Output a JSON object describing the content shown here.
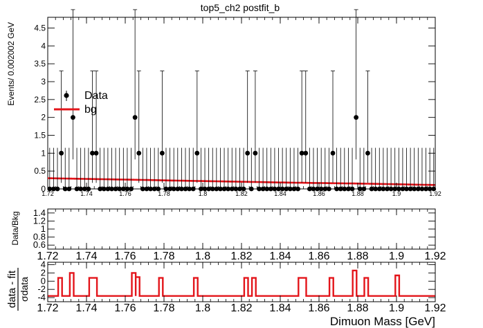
{
  "title": "top5_ch2   postfit_b",
  "chart_data": [
    {
      "type": "scatter",
      "panel": "main",
      "ylabel": "Events/ 0.002002 GeV",
      "xlim": [
        1.72,
        1.92
      ],
      "ylim": [
        0,
        4.8
      ],
      "yticks": [
        "0",
        "0.5",
        "1",
        "1.5",
        "2",
        "2.5",
        "3",
        "3.5",
        "4",
        "4.5"
      ],
      "xticks": [
        "1.72",
        "1.74",
        "1.76",
        "1.78",
        "1.8",
        "1.82",
        "1.84",
        "1.86",
        "1.88",
        "1.9",
        "1.92"
      ],
      "bin_width": 0.002002,
      "legend": {
        "position": "top-left",
        "entries": [
          "Data",
          "bg"
        ]
      },
      "series": [
        {
          "name": "Data",
          "type": "points_with_errors",
          "x_nonzero": [
            1.7264,
            1.7324,
            1.7424,
            1.7444,
            1.7644,
            1.7664,
            1.7784,
            1.7964,
            1.8224,
            1.8264,
            1.8504,
            1.8524,
            1.8664,
            1.8784,
            1.8844
          ],
          "y_nonzero": [
            1,
            2,
            1,
            1,
            2,
            1,
            1,
            1,
            1,
            1,
            1,
            1,
            1,
            2,
            1
          ],
          "zero_error_up": 1.15
        },
        {
          "name": "bg",
          "type": "line",
          "x": [
            1.72,
            1.76,
            1.8,
            1.84,
            1.88,
            1.92
          ],
          "y": [
            0.3,
            0.26,
            0.22,
            0.18,
            0.15,
            0.11
          ]
        }
      ]
    },
    {
      "type": "line",
      "panel": "ratio",
      "ylabel": "Data/Bkg",
      "xlim": [
        1.72,
        1.92
      ],
      "ylim": [
        0.5,
        1.5
      ],
      "yticks": [
        "0.6",
        "0.8",
        "1",
        "1.2",
        "1.4"
      ],
      "xticks": [
        "1.72",
        "1.74",
        "1.76",
        "1.78",
        "1.8",
        "1.82",
        "1.84",
        "1.86",
        "1.88",
        "1.9",
        "1.92"
      ],
      "series": []
    },
    {
      "type": "line",
      "panel": "pull",
      "ylabel_top": "data - fit",
      "ylabel_bottom": "σdata",
      "xlabel": "Dimuon Mass [GeV]",
      "xlim": [
        1.72,
        1.92
      ],
      "ylim": [
        -5,
        4.6
      ],
      "yticks": [
        "-4",
        "-2",
        "0",
        "2",
        "4"
      ],
      "xticks": [
        "1.72",
        "1.74",
        "1.76",
        "1.78",
        "1.8",
        "1.82",
        "1.84",
        "1.86",
        "1.88",
        "1.9",
        "1.92"
      ],
      "series": [
        {
          "name": "pull",
          "baseline": -3.6,
          "spikes": [
            {
              "x0": 1.7254,
              "x1": 1.7274,
              "y": 0.8
            },
            {
              "x0": 1.7314,
              "x1": 1.7334,
              "y": 2.0
            },
            {
              "x0": 1.7414,
              "x1": 1.7454,
              "y": 0.8
            },
            {
              "x0": 1.7634,
              "x1": 1.7654,
              "y": 2.0
            },
            {
              "x0": 1.7654,
              "x1": 1.7674,
              "y": 1.0
            },
            {
              "x0": 1.7774,
              "x1": 1.7794,
              "y": 0.8
            },
            {
              "x0": 1.7954,
              "x1": 1.7974,
              "y": 0.8
            },
            {
              "x0": 1.8214,
              "x1": 1.8234,
              "y": 0.8
            },
            {
              "x0": 1.8254,
              "x1": 1.8274,
              "y": 0.8
            },
            {
              "x0": 1.8494,
              "x1": 1.8534,
              "y": 0.8
            },
            {
              "x0": 1.8654,
              "x1": 1.8674,
              "y": 0.8
            },
            {
              "x0": 1.8774,
              "x1": 1.8794,
              "y": 2.6
            },
            {
              "x0": 1.8834,
              "x1": 1.8854,
              "y": 0.8
            },
            {
              "x0": 1.8994,
              "x1": 1.9014,
              "y": 1.4
            }
          ]
        }
      ]
    }
  ]
}
